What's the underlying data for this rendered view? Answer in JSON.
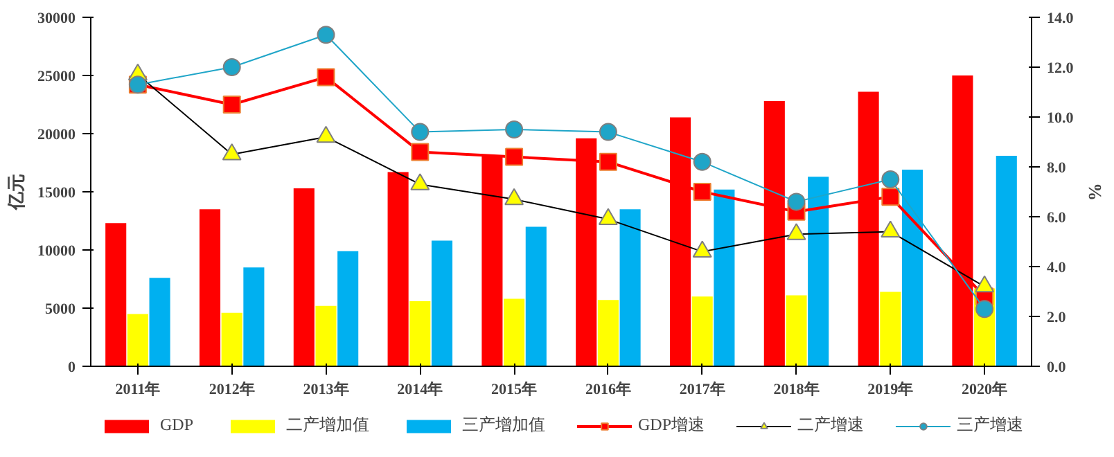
{
  "chart_data": {
    "type": "bar",
    "categories": [
      "2011年",
      "2012年",
      "2013年",
      "2014年",
      "2015年",
      "2016年",
      "2017年",
      "2018年",
      "2019年",
      "2020年"
    ],
    "ylabel": "亿元",
    "y2label": "%",
    "ylim": [
      0,
      30000
    ],
    "yticks": [
      0,
      5000,
      10000,
      15000,
      20000,
      25000,
      30000
    ],
    "y2lim": [
      0,
      14
    ],
    "y2ticks": [
      {
        "value": 0,
        "label": "0.0"
      },
      {
        "value": 2,
        "label": "2.0"
      },
      {
        "value": 4,
        "label": "4.0"
      },
      {
        "value": 6,
        "label": "6.0"
      },
      {
        "value": 8,
        "label": "8.0"
      },
      {
        "value": 10,
        "label": "10.0"
      },
      {
        "value": 12,
        "label": "12.0"
      },
      {
        "value": 14,
        "label": "14.0"
      }
    ],
    "grid": false,
    "legend": "bottom",
    "series": [
      {
        "name": "GDP",
        "color": "#ff0000",
        "values": [
          12300,
          13500,
          15300,
          16700,
          18100,
          19600,
          21400,
          22800,
          23600,
          25000
        ]
      },
      {
        "name": "二产增加值",
        "color": "#ffff00",
        "values": [
          4500,
          4600,
          5200,
          5600,
          5800,
          5700,
          6000,
          6100,
          6400,
          6700
        ]
      },
      {
        "name": "三产增加值",
        "color": "#00b0f0",
        "values": [
          7600,
          8500,
          9900,
          10800,
          12000,
          13500,
          15200,
          16300,
          16900,
          18100
        ]
      },
      {
        "name": "GDP增速",
        "type": "line",
        "axis": "y2",
        "marker": "square",
        "color": "#ff0000",
        "colors": [
          "#ff0000",
          "#ff0000",
          "#ff0000",
          "#ff0000",
          "#ff0000",
          "#ff0000",
          "#ff0000",
          "#ff0000",
          "#ff0000",
          "#ff0000"
        ],
        "values": [
          11.3,
          10.5,
          11.6,
          8.6,
          8.4,
          8.2,
          7.0,
          6.2,
          6.8,
          2.8
        ]
      },
      {
        "name": "二产增速",
        "type": "line",
        "axis": "y2",
        "marker": "triangle",
        "color": "#000000",
        "colors": [
          "#ffff00",
          "#ffff00",
          "#ffff00",
          "#ffff00",
          "#ffff00",
          "#ffff00",
          "#ffff00",
          "#ffff00",
          "#ffff00",
          "#ffff00"
        ],
        "values": [
          11.7,
          8.5,
          9.2,
          7.3,
          6.7,
          5.9,
          4.6,
          5.3,
          5.4,
          3.2
        ]
      },
      {
        "name": "三产增速",
        "type": "line",
        "axis": "y2",
        "marker": "circle",
        "color": "#1fa5c8",
        "colors": [
          "#1fa5c8",
          "#1fa5c8",
          "#1fa5c8",
          "#1fa5c8",
          "#1fa5c8",
          "#1fa5c8",
          "#1fa5c8",
          "#1fa5c8",
          "#1fa5c8",
          "#1fa5c8"
        ],
        "values": [
          11.3,
          12.0,
          13.3,
          9.4,
          9.5,
          9.4,
          8.2,
          6.6,
          7.5,
          2.3
        ]
      }
    ]
  }
}
